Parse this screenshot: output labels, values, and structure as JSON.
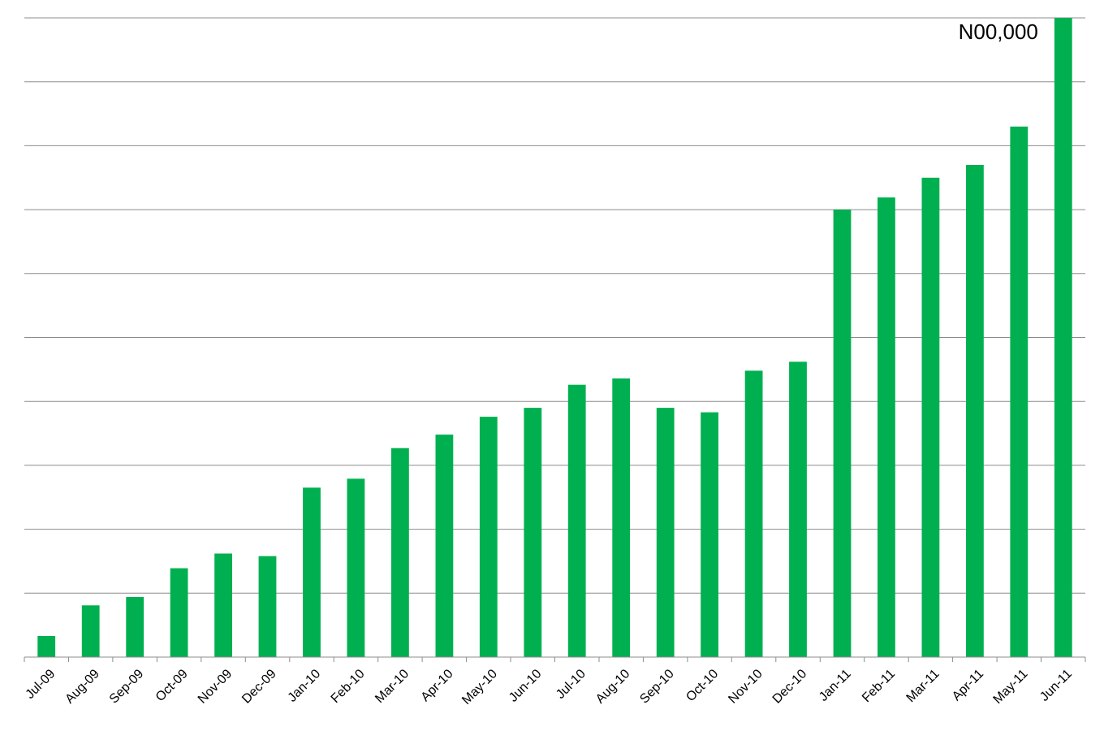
{
  "chart_data": {
    "type": "bar",
    "title": "",
    "xlabel": "",
    "ylabel": "",
    "categories": [
      "Jul-09",
      "Aug-09",
      "Sep-09",
      "Oct-09",
      "Nov-09",
      "Dec-09",
      "Jan-10",
      "Feb-10",
      "Mar-10",
      "Apr-10",
      "May-10",
      "Jun-10",
      "Jul-10",
      "Aug-10",
      "Sep-10",
      "Oct-10",
      "Nov-10",
      "Dec-10",
      "Jan-11",
      "Feb-11",
      "Mar-11",
      "Apr-11",
      "May-11",
      "Jun-11"
    ],
    "values": [
      3.3,
      8.1,
      9.4,
      13.9,
      16.2,
      15.8,
      26.5,
      27.9,
      32.7,
      34.8,
      37.6,
      39.0,
      42.6,
      43.6,
      39.0,
      38.3,
      44.8,
      46.2,
      70.0,
      71.9,
      75.0,
      77.0,
      83.0,
      100.0
    ],
    "ylim": [
      0,
      100
    ],
    "grid": true,
    "gridline_count": 10,
    "bar_color": "#00b050",
    "annotations": [
      {
        "text": "N00,000",
        "category": "Jun-11"
      }
    ]
  }
}
